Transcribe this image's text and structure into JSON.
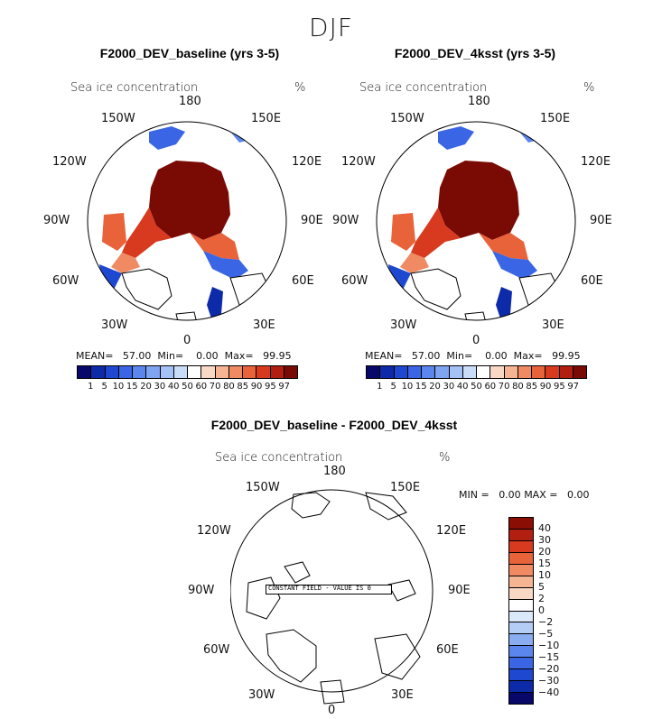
{
  "figure": {
    "season": "DJF"
  },
  "panels": [
    {
      "title": "F2000_DEV_baseline (yrs 3-5)",
      "variable": "Sea ice concentration",
      "units": "%",
      "stats": {
        "mean": "57.00",
        "min": "0.00",
        "max": "99.95"
      },
      "stats_labels": {
        "mean": "MEAN=",
        "min": "Min=",
        "max": "Max="
      }
    },
    {
      "title": "F2000_DEV_4ksst (yrs 3-5)",
      "variable": "Sea ice concentration",
      "units": "%",
      "stats": {
        "mean": "57.00",
        "min": "0.00",
        "max": "99.95"
      },
      "stats_labels": {
        "mean": "MEAN=",
        "min": "Min=",
        "max": "Max="
      }
    },
    {
      "title": "F2000_DEV_baseline - F2000_DEV_4ksst",
      "variable": "Sea ice concentration",
      "units": "%",
      "stats": {
        "min": "0.00",
        "max": "0.00"
      },
      "stats_labels": {
        "min": "MIN =",
        "max": "MAX ="
      },
      "annotation": "CONSTANT FIELD - VALUE IS 0"
    }
  ],
  "map_labels": {
    "top": "180",
    "upper_left": "150W",
    "upper_right": "150E",
    "left_upper": "120W",
    "right_upper": "120E",
    "left": "90W",
    "right": "90E",
    "left_lower": "60W",
    "right_lower": "60E",
    "lower_left": "30W",
    "lower_right": "30E",
    "bottom": "0"
  },
  "colorbar_abs": {
    "ticks": [
      "1",
      "5",
      "10",
      "15",
      "20",
      "30",
      "40",
      "50",
      "60",
      "70",
      "80",
      "85",
      "90",
      "95",
      "97"
    ],
    "colors": [
      "#08086b",
      "#0d2aa8",
      "#1f48d0",
      "#3a66e6",
      "#5b86ee",
      "#7ea4f2",
      "#a4c2f6",
      "#c9dcf8",
      "#ffffff",
      "#f8d8c4",
      "#f5b592",
      "#f08a62",
      "#e8623a",
      "#d83a20",
      "#b21e10",
      "#7a0a04"
    ]
  },
  "colorbar_diff": {
    "ticks": [
      "40",
      "30",
      "20",
      "15",
      "10",
      "5",
      "2",
      "0",
      "−2",
      "−5",
      "−10",
      "−15",
      "−20",
      "−30",
      "−40"
    ],
    "colors": [
      "#8a0e04",
      "#b21e10",
      "#d83a20",
      "#e8623a",
      "#f08a62",
      "#f5b592",
      "#f8d8c4",
      "#ffffff",
      "#dbe8fa",
      "#b4cdf6",
      "#8aadf2",
      "#5b86ee",
      "#3a66e6",
      "#1f48d0",
      "#0d2aa8",
      "#08086b"
    ]
  },
  "legend": {
    "icons": [
      "map-frame-icon"
    ]
  }
}
